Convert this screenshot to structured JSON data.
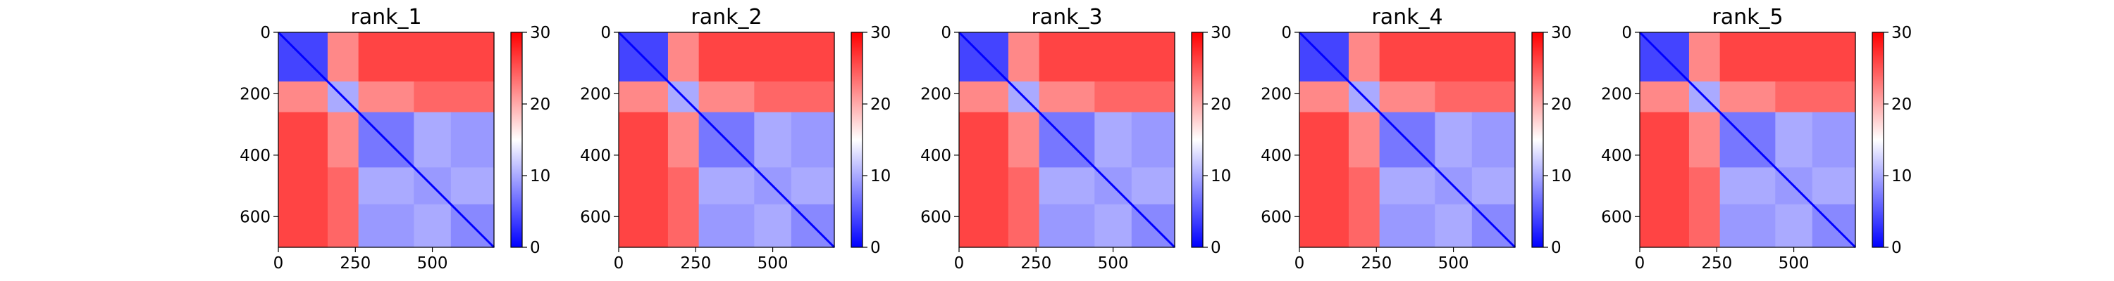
{
  "chart_data": {
    "type": "heatmap",
    "colormap": "bwr",
    "colors": {
      "low": "#0000ff",
      "mid": "#ffffff",
      "high": "#ff0000"
    },
    "value_range": [
      0,
      30
    ],
    "grid": false,
    "matrix_size": 700,
    "region_boundaries": [
      0,
      160,
      260,
      440,
      560,
      700
    ],
    "region_mean_values": [
      [
        4,
        22,
        26,
        26,
        26
      ],
      [
        22,
        10,
        22,
        24,
        24
      ],
      [
        26,
        22,
        7,
        10,
        9
      ],
      [
        26,
        24,
        10,
        9,
        10
      ],
      [
        26,
        24,
        9,
        10,
        8
      ]
    ],
    "diagonal_value": 0,
    "colorbar_ticks": [
      "0",
      "10",
      "20",
      "30"
    ],
    "panels": [
      {
        "title": "rank_1",
        "xticks": [
          "0",
          "250",
          "500"
        ],
        "yticks": [
          "0",
          "200",
          "400",
          "600"
        ],
        "xlim": [
          0,
          700
        ],
        "ylim": [
          700,
          0
        ]
      },
      {
        "title": "rank_2",
        "xticks": [
          "0",
          "250",
          "500"
        ],
        "yticks": [
          "0",
          "200",
          "400",
          "600"
        ],
        "xlim": [
          0,
          700
        ],
        "ylim": [
          700,
          0
        ]
      },
      {
        "title": "rank_3",
        "xticks": [
          "0",
          "250",
          "500"
        ],
        "yticks": [
          "0",
          "200",
          "400",
          "600"
        ],
        "xlim": [
          0,
          700
        ],
        "ylim": [
          700,
          0
        ]
      },
      {
        "title": "rank_4",
        "xticks": [
          "0",
          "250",
          "500"
        ],
        "yticks": [
          "0",
          "200",
          "400",
          "600"
        ],
        "xlim": [
          0,
          700
        ],
        "ylim": [
          700,
          0
        ]
      },
      {
        "title": "rank_5",
        "xticks": [
          "0",
          "250",
          "500"
        ],
        "yticks": [
          "0",
          "200",
          "400",
          "600"
        ],
        "xlim": [
          0,
          700
        ],
        "ylim": [
          700,
          0
        ]
      }
    ]
  }
}
